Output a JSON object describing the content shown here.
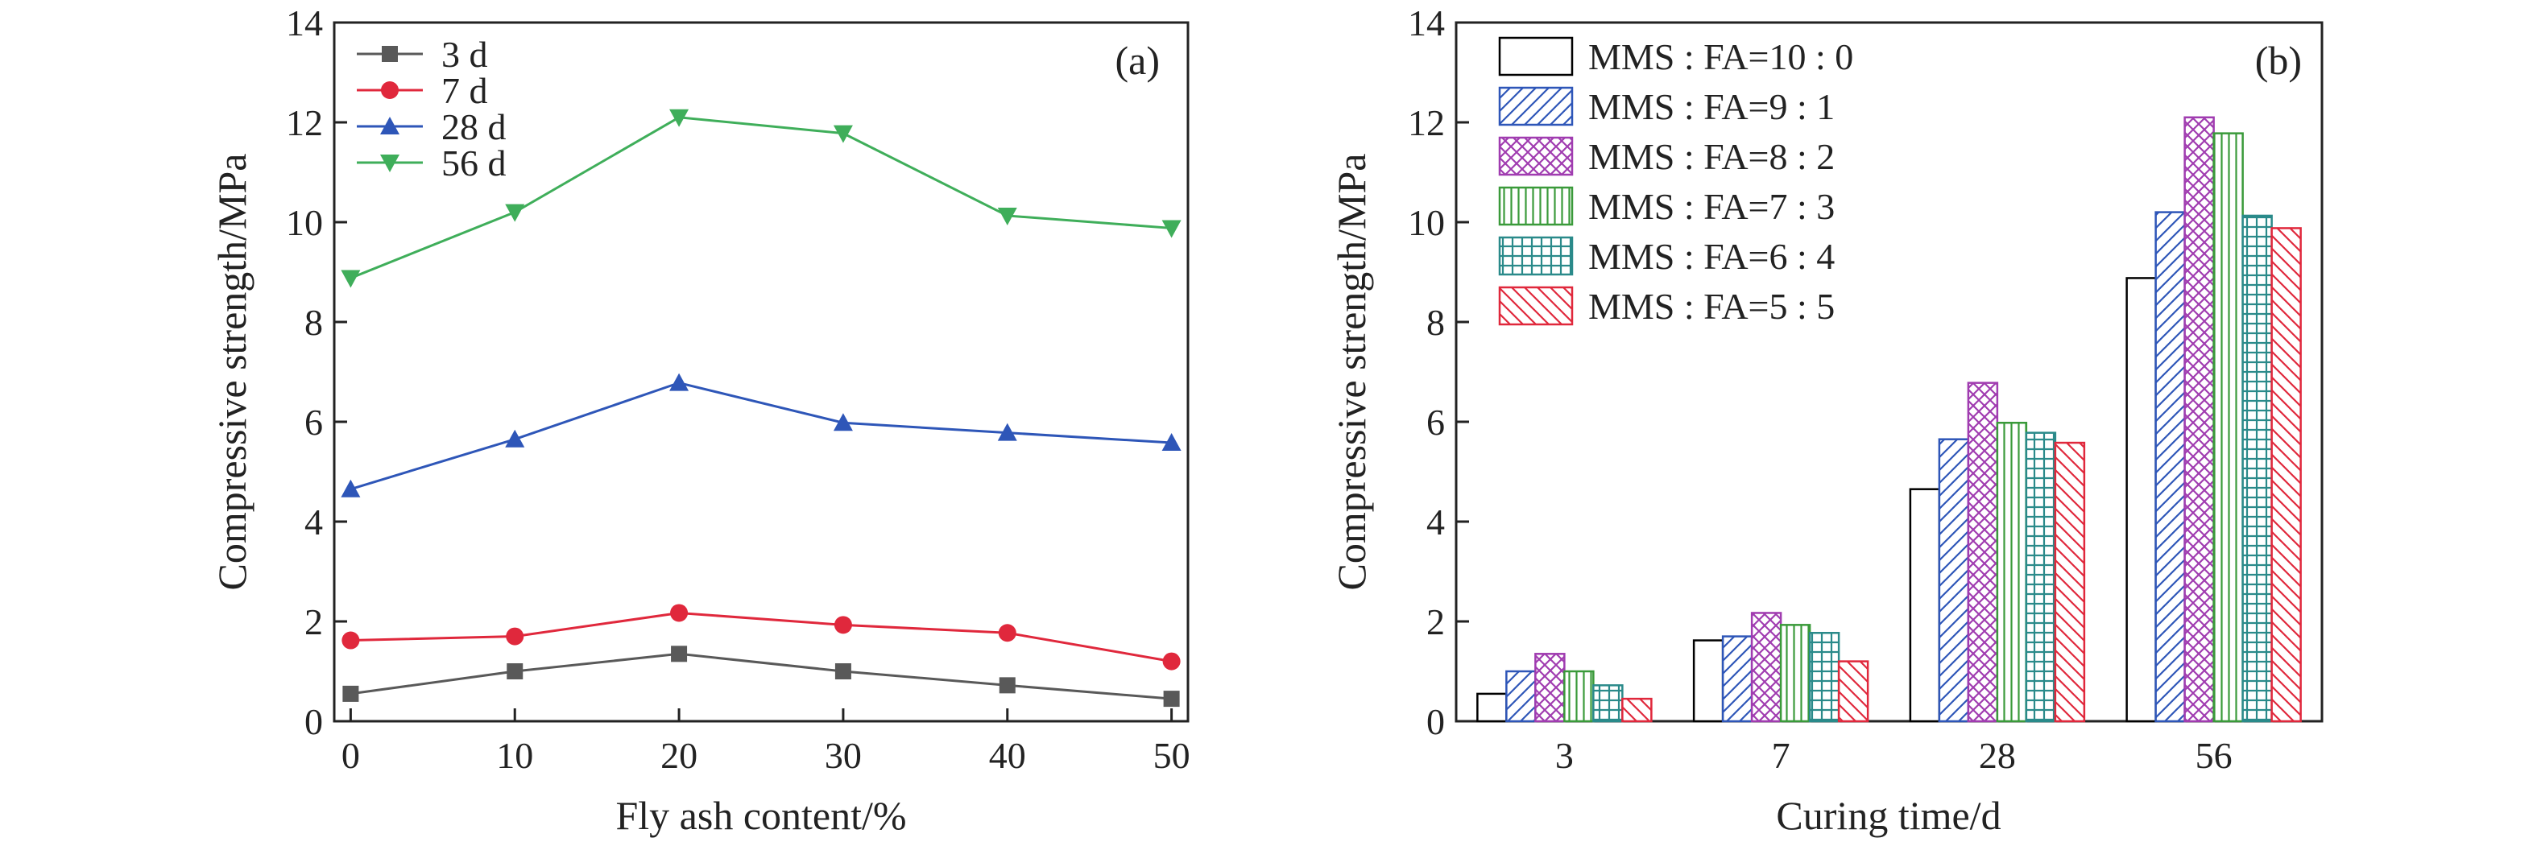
{
  "chart_data": [
    {
      "type": "line",
      "panel_label": "(a)",
      "xlabel": "Fly ash content/%",
      "ylabel": "Compressive strength/MPa",
      "x": [
        0,
        10,
        20,
        30,
        40,
        50
      ],
      "xticks": [
        "0",
        "10",
        "20",
        "30",
        "40",
        "50"
      ],
      "xlim": [
        -1,
        51
      ],
      "ylim": [
        0,
        14
      ],
      "yticks": [
        "0",
        "2",
        "4",
        "6",
        "8",
        "10",
        "12",
        "14"
      ],
      "legend_position": "top-left",
      "grid": false,
      "series": [
        {
          "name": "3 d",
          "values": [
            0.55,
            1.0,
            1.35,
            1.0,
            0.72,
            0.45
          ],
          "color": "#595959",
          "marker": "square"
        },
        {
          "name": "7 d",
          "values": [
            1.62,
            1.7,
            2.17,
            1.93,
            1.77,
            1.2
          ],
          "color": "#e0283c",
          "marker": "circle"
        },
        {
          "name": "28 d",
          "values": [
            4.65,
            5.65,
            6.78,
            5.98,
            5.78,
            5.58
          ],
          "color": "#2e56b8",
          "marker": "triangle-up"
        },
        {
          "name": "56 d",
          "values": [
            8.88,
            10.2,
            12.1,
            11.78,
            10.13,
            9.88
          ],
          "color": "#3fae5a",
          "marker": "triangle-down"
        }
      ]
    },
    {
      "type": "bar",
      "panel_label": "(b)",
      "xlabel": "Curing time/d",
      "ylabel": "Compressive strength/MPa",
      "categories": [
        "3",
        "7",
        "28",
        "56"
      ],
      "ylim": [
        0,
        14
      ],
      "yticks": [
        "0",
        "2",
        "4",
        "6",
        "8",
        "10",
        "12",
        "14"
      ],
      "legend_position": "top-left",
      "grid": false,
      "series": [
        {
          "name": "MMS : FA=10 : 0",
          "values": [
            0.55,
            1.62,
            4.65,
            8.88
          ],
          "color": "#000000",
          "pattern": "none"
        },
        {
          "name": "MMS : FA=9 : 1",
          "values": [
            1.0,
            1.7,
            5.65,
            10.2
          ],
          "color": "#2e56b8",
          "pattern": "diagonal-up"
        },
        {
          "name": "MMS : FA=8 : 2",
          "values": [
            1.35,
            2.17,
            6.78,
            12.1
          ],
          "color": "#a03cb0",
          "pattern": "crosshatch-diagonal"
        },
        {
          "name": "MMS : FA=7 : 3",
          "values": [
            1.0,
            1.93,
            5.98,
            11.78
          ],
          "color": "#3a9a3a",
          "pattern": "vertical"
        },
        {
          "name": "MMS : FA=6 : 4",
          "values": [
            0.72,
            1.77,
            5.78,
            10.13
          ],
          "color": "#2a8a8a",
          "pattern": "grid"
        },
        {
          "name": "MMS : FA=5 : 5",
          "values": [
            0.45,
            1.2,
            5.58,
            9.88
          ],
          "color": "#e0283c",
          "pattern": "diagonal-down"
        }
      ]
    }
  ]
}
